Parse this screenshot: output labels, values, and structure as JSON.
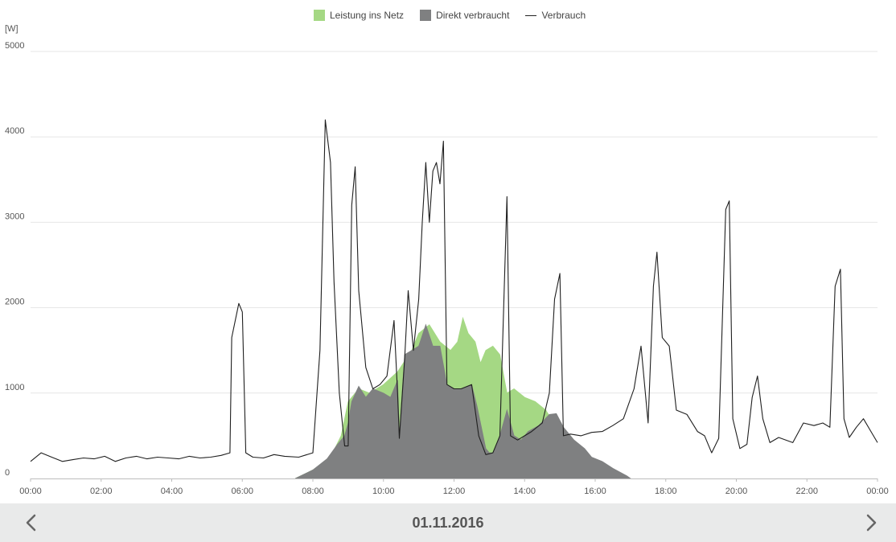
{
  "chart_data": {
    "type": "area",
    "ylabel": "[W]",
    "ylim": [
      0,
      5000
    ],
    "yticks": [
      "0",
      "1000",
      "2000",
      "3000",
      "4000",
      "5000"
    ],
    "xticks": [
      "00:00",
      "02:00",
      "04:00",
      "06:00",
      "08:00",
      "10:00",
      "12:00",
      "14:00",
      "16:00",
      "18:00",
      "20:00",
      "22:00",
      "00:00"
    ],
    "xlim_hours": [
      0,
      24
    ],
    "grid": true,
    "legend_position": "top-center",
    "series": [
      {
        "name": "Leistung ins Netz",
        "kind": "area",
        "color": "#a5d884",
        "points": [
          [
            7.5,
            0
          ],
          [
            8,
            100
          ],
          [
            8.5,
            250
          ],
          [
            8.8,
            500
          ],
          [
            9,
            900
          ],
          [
            9.3,
            1050
          ],
          [
            9.6,
            1000
          ],
          [
            10,
            1100
          ],
          [
            10.4,
            1250
          ],
          [
            10.8,
            1500
          ],
          [
            11,
            1700
          ],
          [
            11.3,
            1800
          ],
          [
            11.6,
            1600
          ],
          [
            11.9,
            1500
          ],
          [
            12.1,
            1600
          ],
          [
            12.25,
            1880
          ],
          [
            12.4,
            1700
          ],
          [
            12.6,
            1600
          ],
          [
            12.75,
            1350
          ],
          [
            12.9,
            1500
          ],
          [
            13.1,
            1550
          ],
          [
            13.3,
            1450
          ],
          [
            13.5,
            1000
          ],
          [
            13.7,
            1050
          ],
          [
            14,
            950
          ],
          [
            14.3,
            900
          ],
          [
            14.6,
            800
          ],
          [
            14.9,
            600
          ],
          [
            15.1,
            450
          ],
          [
            15.4,
            300
          ],
          [
            15.7,
            200
          ],
          [
            16,
            150
          ],
          [
            16.5,
            80
          ],
          [
            16.9,
            0
          ]
        ]
      },
      {
        "name": "Direkt verbraucht",
        "kind": "area",
        "color": "#7f8081",
        "points": [
          [
            7.5,
            0
          ],
          [
            8,
            100
          ],
          [
            8.4,
            230
          ],
          [
            8.7,
            400
          ],
          [
            8.9,
            500
          ],
          [
            9,
            650
          ],
          [
            9.1,
            900
          ],
          [
            9.3,
            1080
          ],
          [
            9.5,
            950
          ],
          [
            9.7,
            1050
          ],
          [
            10,
            1000
          ],
          [
            10.2,
            950
          ],
          [
            10.4,
            1150
          ],
          [
            10.45,
            500
          ],
          [
            10.6,
            1450
          ],
          [
            10.8,
            1500
          ],
          [
            11,
            1550
          ],
          [
            11.2,
            1800
          ],
          [
            11.4,
            1550
          ],
          [
            11.6,
            1550
          ],
          [
            11.8,
            1100
          ],
          [
            12,
            1050
          ],
          [
            12.2,
            1050
          ],
          [
            12.5,
            1100
          ],
          [
            12.65,
            850
          ],
          [
            12.8,
            550
          ],
          [
            12.9,
            350
          ],
          [
            13,
            300
          ],
          [
            13.1,
            300
          ],
          [
            13.3,
            500
          ],
          [
            13.5,
            800
          ],
          [
            13.7,
            500
          ],
          [
            13.9,
            450
          ],
          [
            14.1,
            550
          ],
          [
            14.4,
            620
          ],
          [
            14.7,
            750
          ],
          [
            14.9,
            760
          ],
          [
            15.1,
            600
          ],
          [
            15.4,
            450
          ],
          [
            15.7,
            350
          ],
          [
            15.9,
            250
          ],
          [
            16.2,
            200
          ],
          [
            16.5,
            120
          ],
          [
            16.9,
            30
          ],
          [
            17,
            0
          ]
        ]
      },
      {
        "name": "Verbrauch",
        "kind": "line",
        "color": "#1f1f1f",
        "points": [
          [
            0,
            200
          ],
          [
            0.3,
            300
          ],
          [
            0.6,
            250
          ],
          [
            0.9,
            200
          ],
          [
            1.2,
            220
          ],
          [
            1.5,
            240
          ],
          [
            1.8,
            230
          ],
          [
            2.1,
            260
          ],
          [
            2.4,
            200
          ],
          [
            2.7,
            240
          ],
          [
            3,
            260
          ],
          [
            3.3,
            230
          ],
          [
            3.6,
            250
          ],
          [
            3.9,
            240
          ],
          [
            4.2,
            230
          ],
          [
            4.5,
            260
          ],
          [
            4.8,
            240
          ],
          [
            5.1,
            250
          ],
          [
            5.4,
            270
          ],
          [
            5.65,
            300
          ],
          [
            5.7,
            1650
          ],
          [
            5.9,
            2050
          ],
          [
            6,
            1950
          ],
          [
            6.1,
            300
          ],
          [
            6.3,
            250
          ],
          [
            6.6,
            240
          ],
          [
            6.9,
            280
          ],
          [
            7.2,
            260
          ],
          [
            7.6,
            250
          ],
          [
            8,
            300
          ],
          [
            8.2,
            1500
          ],
          [
            8.35,
            4200
          ],
          [
            8.5,
            3700
          ],
          [
            8.6,
            2300
          ],
          [
            8.75,
            1000
          ],
          [
            8.9,
            380
          ],
          [
            9,
            380
          ],
          [
            9.1,
            3200
          ],
          [
            9.2,
            3650
          ],
          [
            9.3,
            2200
          ],
          [
            9.5,
            1300
          ],
          [
            9.7,
            1050
          ],
          [
            9.9,
            1100
          ],
          [
            10.1,
            1200
          ],
          [
            10.3,
            1850
          ],
          [
            10.4,
            1000
          ],
          [
            10.45,
            470
          ],
          [
            10.6,
            1400
          ],
          [
            10.7,
            2200
          ],
          [
            10.85,
            1500
          ],
          [
            11,
            2100
          ],
          [
            11.1,
            3000
          ],
          [
            11.2,
            3700
          ],
          [
            11.3,
            3000
          ],
          [
            11.4,
            3600
          ],
          [
            11.5,
            3700
          ],
          [
            11.6,
            3450
          ],
          [
            11.7,
            3950
          ],
          [
            11.8,
            1100
          ],
          [
            12,
            1050
          ],
          [
            12.2,
            1050
          ],
          [
            12.5,
            1100
          ],
          [
            12.7,
            500
          ],
          [
            12.9,
            280
          ],
          [
            13.1,
            300
          ],
          [
            13.3,
            500
          ],
          [
            13.5,
            3300
          ],
          [
            13.6,
            500
          ],
          [
            13.8,
            450
          ],
          [
            14,
            500
          ],
          [
            14.2,
            550
          ],
          [
            14.5,
            650
          ],
          [
            14.7,
            1000
          ],
          [
            14.85,
            2100
          ],
          [
            15,
            2400
          ],
          [
            15.1,
            500
          ],
          [
            15.3,
            520
          ],
          [
            15.6,
            500
          ],
          [
            15.9,
            540
          ],
          [
            16.2,
            550
          ],
          [
            16.5,
            620
          ],
          [
            16.8,
            700
          ],
          [
            17.1,
            1050
          ],
          [
            17.3,
            1550
          ],
          [
            17.5,
            650
          ],
          [
            17.65,
            2250
          ],
          [
            17.75,
            2650
          ],
          [
            17.9,
            1650
          ],
          [
            18.1,
            1550
          ],
          [
            18.3,
            800
          ],
          [
            18.6,
            750
          ],
          [
            18.9,
            550
          ],
          [
            19.1,
            500
          ],
          [
            19.3,
            300
          ],
          [
            19.5,
            470
          ],
          [
            19.7,
            3150
          ],
          [
            19.8,
            3250
          ],
          [
            19.9,
            700
          ],
          [
            20.1,
            350
          ],
          [
            20.3,
            400
          ],
          [
            20.45,
            950
          ],
          [
            20.6,
            1200
          ],
          [
            20.75,
            700
          ],
          [
            20.95,
            420
          ],
          [
            21.2,
            480
          ],
          [
            21.6,
            420
          ],
          [
            21.9,
            650
          ],
          [
            22.2,
            620
          ],
          [
            22.45,
            650
          ],
          [
            22.65,
            600
          ],
          [
            22.8,
            2250
          ],
          [
            22.95,
            2450
          ],
          [
            23.05,
            700
          ],
          [
            23.2,
            480
          ],
          [
            23.4,
            600
          ],
          [
            23.6,
            700
          ],
          [
            23.8,
            560
          ],
          [
            24,
            420
          ]
        ]
      }
    ]
  },
  "navigation": {
    "date": "01.11.2016",
    "prev_icon": "chevron-left-icon",
    "next_icon": "chevron-right-icon"
  }
}
